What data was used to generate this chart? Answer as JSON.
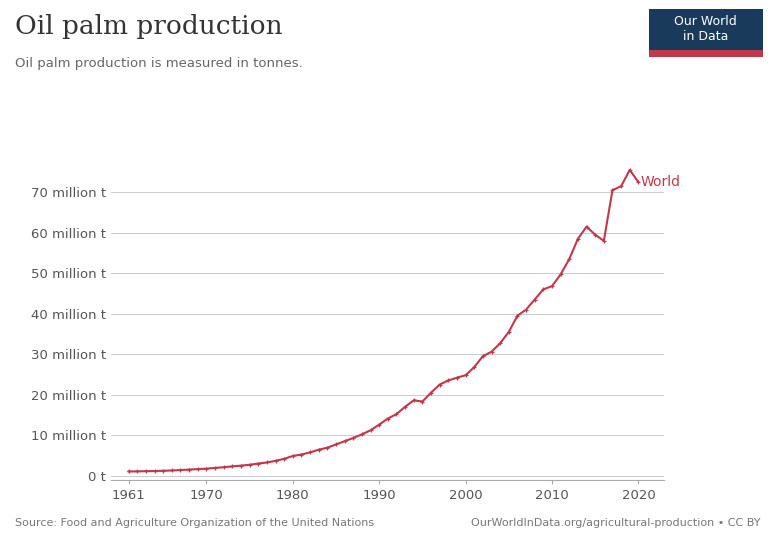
{
  "title": "Oil palm production",
  "subtitle": "Oil palm production is measured in tonnes.",
  "source_left": "Source: Food and Agriculture Organization of the United Nations",
  "source_right": "OurWorldInData.org/agricultural-production • CC BY",
  "line_color": "#c0384b",
  "background_color": "#ffffff",
  "years": [
    1961,
    1962,
    1963,
    1964,
    1965,
    1966,
    1967,
    1968,
    1969,
    1970,
    1971,
    1972,
    1973,
    1974,
    1975,
    1976,
    1977,
    1978,
    1979,
    1980,
    1981,
    1982,
    1983,
    1984,
    1985,
    1986,
    1987,
    1988,
    1989,
    1990,
    1991,
    1992,
    1993,
    1994,
    1995,
    1996,
    1997,
    1998,
    1999,
    2000,
    2001,
    2002,
    2003,
    2004,
    2005,
    2006,
    2007,
    2008,
    2009,
    2010,
    2011,
    2012,
    2013,
    2014,
    2015,
    2016,
    2017,
    2018,
    2019,
    2020
  ],
  "values_M": [
    1.02,
    1.05,
    1.1,
    1.14,
    1.2,
    1.27,
    1.38,
    1.5,
    1.6,
    1.73,
    1.9,
    2.08,
    2.28,
    2.47,
    2.68,
    2.98,
    3.25,
    3.65,
    4.15,
    4.85,
    5.2,
    5.75,
    6.4,
    6.9,
    7.7,
    8.5,
    9.3,
    10.2,
    11.2,
    12.6,
    14.1,
    15.2,
    17.0,
    18.6,
    18.3,
    20.5,
    22.5,
    23.5,
    24.2,
    24.8,
    26.8,
    29.5,
    30.6,
    32.7,
    35.5,
    39.5,
    41.0,
    43.5,
    46.0,
    46.8,
    49.7,
    53.5,
    58.5,
    61.5,
    59.5,
    58.0,
    70.5,
    71.5,
    75.5,
    72.5
  ],
  "yticks": [
    0,
    10000000,
    20000000,
    30000000,
    40000000,
    50000000,
    60000000,
    70000000
  ],
  "ytick_labels": [
    "0 t",
    "10 million t",
    "20 million t",
    "30 million t",
    "40 million t",
    "50 million t",
    "60 million t",
    "70 million t"
  ],
  "xticks": [
    1961,
    1970,
    1980,
    1990,
    2000,
    2010,
    2020
  ],
  "xtick_labels": [
    "1961",
    "1970",
    "1980",
    "1990",
    "2000",
    "2010",
    "2020"
  ],
  "label": "World",
  "label_color": "#c0384b",
  "owid_box_color": "#1a3a5c",
  "owid_red": "#c0384b",
  "ylim_max": 82000000,
  "xlim_min": 1959,
  "xlim_max": 2023
}
